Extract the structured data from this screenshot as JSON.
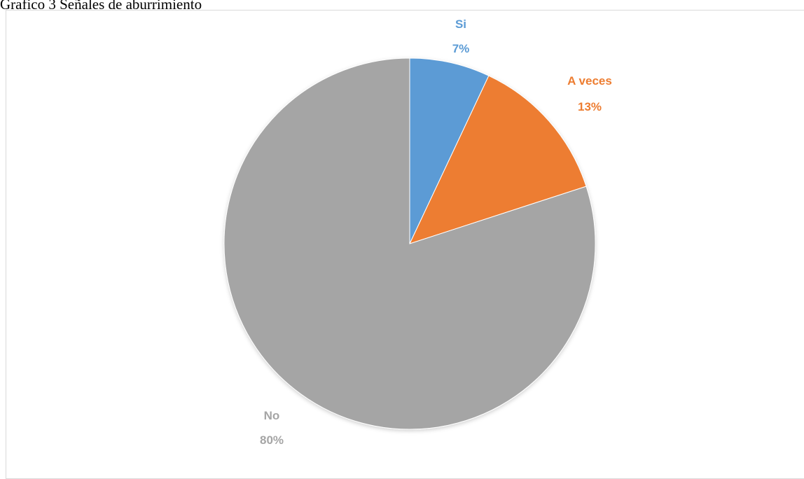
{
  "title": "Grafico 3 Señales de aburrimiento",
  "chart_data": {
    "type": "pie",
    "title": "Grafico 3 Señales de aburrimiento",
    "slices": [
      {
        "label": "Si",
        "value": 7,
        "display": "7%",
        "color": "#5b9bd5"
      },
      {
        "label": "A veces",
        "value": 13,
        "display": "13%",
        "color": "#ed7d31"
      },
      {
        "label": "No",
        "value": 80,
        "display": "80%",
        "color": "#a5a5a5"
      }
    ]
  }
}
